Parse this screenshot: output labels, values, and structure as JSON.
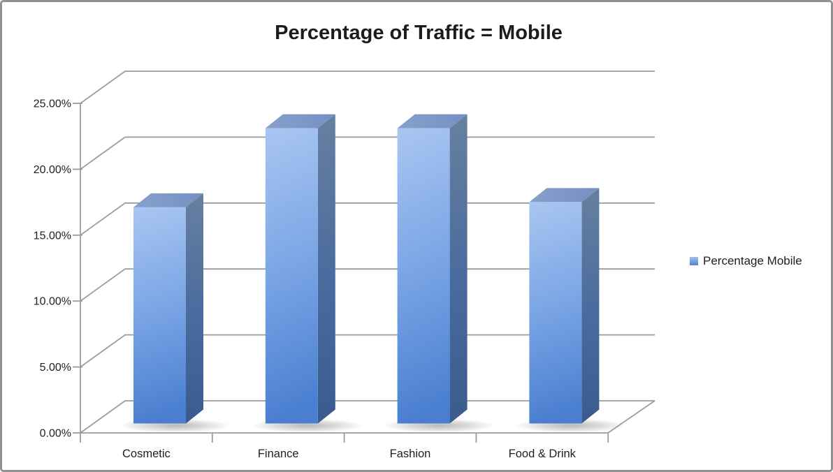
{
  "window": {
    "background": "#ffffff",
    "border_color": "#919191"
  },
  "chart_data": {
    "type": "bar",
    "style": "3d-column",
    "title": "Percentage of Traffic = Mobile",
    "categories": [
      "Cosmetic",
      "Finance",
      "Fashion",
      "Food & Drink"
    ],
    "series": [
      {
        "name": "Percentage Mobile",
        "values": [
          16.4,
          22.4,
          22.4,
          16.8
        ]
      }
    ],
    "xlabel": "",
    "ylabel": "",
    "ylim": [
      0,
      25
    ],
    "y_tick_step": 5,
    "y_tick_labels": [
      "0.00%",
      "5.00%",
      "10.00%",
      "15.00%",
      "20.00%",
      "25.00%"
    ],
    "grid": true,
    "legend_position": "right",
    "colors": {
      "bar_front_top": "#a9c6f1",
      "bar_front_mid": "#76a2e4",
      "bar_front_bottom": "#4a7fd0",
      "bar_side_top": "#66809f",
      "bar_side_mid": "#4b6c9e",
      "bar_side_bottom": "#3a5b8e",
      "bar_top_left": "#87a0cd",
      "bar_top_right": "#7590c2",
      "legend_swatch_top": "#9cc0ef",
      "legend_swatch_bottom": "#5585cd",
      "gridline": "#9c9c9c",
      "axis": "#9c9c9c",
      "shadow": "#8a8a8a",
      "text": "#1f1f1f"
    }
  }
}
